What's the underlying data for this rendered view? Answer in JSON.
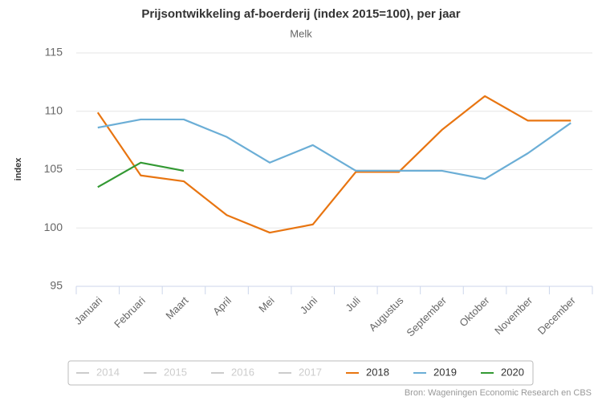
{
  "chart_data": {
    "type": "line",
    "title": "Prijsontwikkeling af-boerderij (index 2015=100), per jaar",
    "subtitle": "Melk",
    "y_label": "index",
    "source": "Bron: Wageningen Economic Research en CBS",
    "categories": [
      "Januari",
      "Februari",
      "Maart",
      "April",
      "Mei",
      "Juni",
      "Juli",
      "Augustus",
      "September",
      "Oktober",
      "November",
      "December"
    ],
    "series": [
      {
        "name": "2014",
        "color": "#cccccc",
        "visible": false,
        "values": [
          null,
          null,
          null,
          null,
          null,
          null,
          null,
          null,
          null,
          null,
          null,
          null
        ]
      },
      {
        "name": "2015",
        "color": "#cccccc",
        "visible": false,
        "values": [
          null,
          null,
          null,
          null,
          null,
          null,
          null,
          null,
          null,
          null,
          null,
          null
        ]
      },
      {
        "name": "2016",
        "color": "#cccccc",
        "visible": false,
        "values": [
          null,
          null,
          null,
          null,
          null,
          null,
          null,
          null,
          null,
          null,
          null,
          null
        ]
      },
      {
        "name": "2017",
        "color": "#cccccc",
        "visible": false,
        "values": [
          null,
          null,
          null,
          null,
          null,
          null,
          null,
          null,
          null,
          null,
          null,
          null
        ]
      },
      {
        "name": "2018",
        "color": "#e87511",
        "visible": true,
        "values": [
          109.9,
          104.5,
          104.0,
          101.1,
          99.6,
          100.3,
          104.8,
          104.8,
          108.4,
          111.3,
          109.2,
          109.2
        ]
      },
      {
        "name": "2019",
        "color": "#6baed6",
        "visible": true,
        "values": [
          108.6,
          109.3,
          109.3,
          107.8,
          105.6,
          107.1,
          104.9,
          104.9,
          104.9,
          104.2,
          106.4,
          109.0
        ]
      },
      {
        "name": "2020",
        "color": "#339933",
        "visible": true,
        "values": [
          103.5,
          105.6,
          104.9,
          null,
          null,
          null,
          null,
          null,
          null,
          null,
          null,
          null
        ]
      }
    ],
    "ylim": [
      95,
      115
    ],
    "yticks": [
      95,
      100,
      105,
      110,
      115
    ],
    "grid": true
  }
}
